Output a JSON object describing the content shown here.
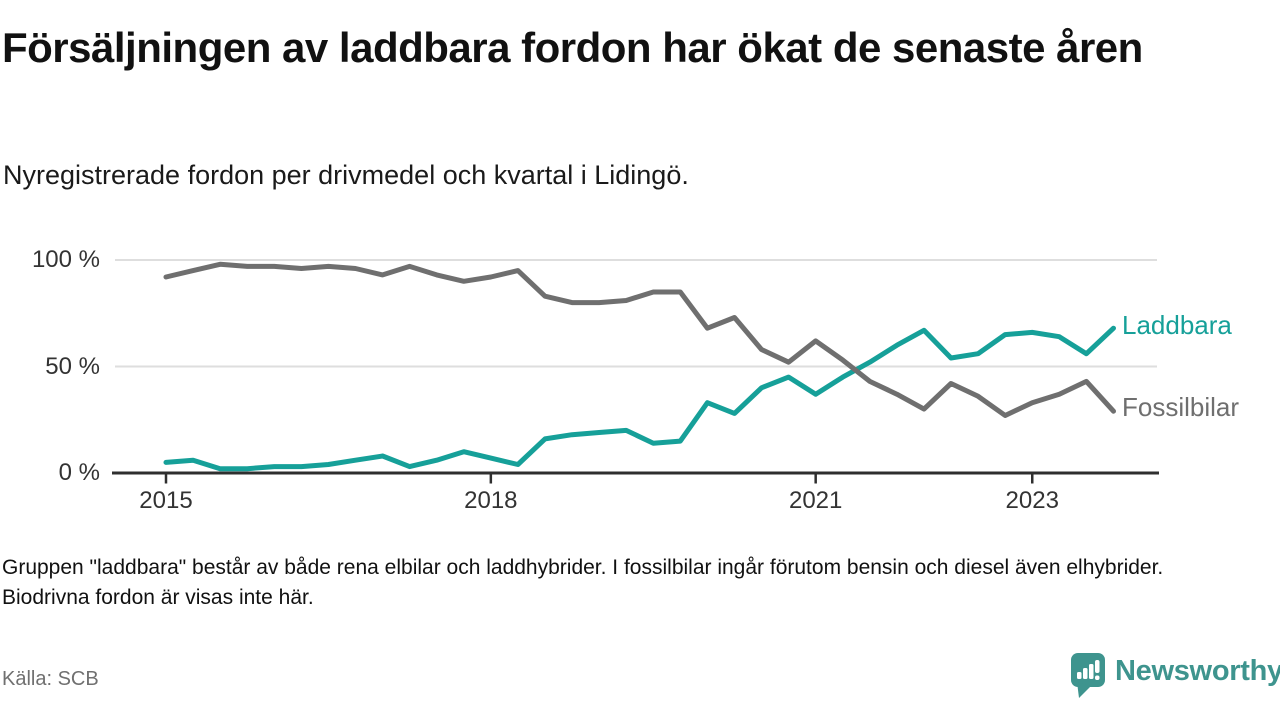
{
  "header": {
    "title": "Försäljningen av laddbara fordon har ökat de senaste åren",
    "subtitle": "Nyregistrerade fordon per drivmedel och kvartal i Lidingö."
  },
  "chart_data": {
    "type": "line",
    "title": "Nyregistrerade fordon per drivmedel och kvartal i Lidingö",
    "x_unit": "quarter",
    "categories": [
      "2015 Q1",
      "2015 Q2",
      "2015 Q3",
      "2015 Q4",
      "2016 Q1",
      "2016 Q2",
      "2016 Q3",
      "2016 Q4",
      "2017 Q1",
      "2017 Q2",
      "2017 Q3",
      "2017 Q4",
      "2018 Q1",
      "2018 Q2",
      "2018 Q3",
      "2018 Q4",
      "2019 Q1",
      "2019 Q2",
      "2019 Q3",
      "2019 Q4",
      "2020 Q1",
      "2020 Q2",
      "2020 Q3",
      "2020 Q4",
      "2021 Q1",
      "2021 Q2",
      "2021 Q3",
      "2021 Q4",
      "2022 Q1",
      "2022 Q2",
      "2022 Q3",
      "2022 Q4",
      "2023 Q1",
      "2023 Q2",
      "2023 Q3",
      "2023 Q4"
    ],
    "series": [
      {
        "name": "Laddbara",
        "color": "#16a099",
        "values": [
          5,
          6,
          2,
          2,
          3,
          3,
          4,
          6,
          8,
          3,
          6,
          10,
          7,
          4,
          16,
          18,
          19,
          20,
          14,
          15,
          33,
          28,
          40,
          45,
          37,
          45,
          52,
          60,
          67,
          54,
          56,
          65,
          66,
          64,
          56,
          68
        ]
      },
      {
        "name": "Fossilbilar",
        "color": "#6f6f6f",
        "values": [
          92,
          95,
          98,
          97,
          97,
          96,
          97,
          96,
          93,
          97,
          93,
          90,
          92,
          95,
          83,
          80,
          80,
          81,
          85,
          85,
          68,
          73,
          58,
          52,
          62,
          53,
          43,
          37,
          30,
          42,
          36,
          27,
          33,
          37,
          43,
          29
        ]
      }
    ],
    "unit": "%",
    "ylim": [
      0,
      100
    ],
    "grid": true,
    "legend_position": "end-of-line",
    "yticks": [
      {
        "label": "100 %",
        "value": 100
      },
      {
        "label": "50 %",
        "value": 50
      },
      {
        "label": "0 %",
        "value": 0
      }
    ],
    "xticks": [
      {
        "label": "2015",
        "index": 0
      },
      {
        "label": "2018",
        "index": 12
      },
      {
        "label": "2021",
        "index": 24
      },
      {
        "label": "2023",
        "index": 32
      }
    ]
  },
  "footnote": "Gruppen \"laddbara\" består av både rena elbilar och laddhybrider. I fossilbilar ingår förutom bensin och diesel även elhybrider. Biodrivna fordon är visas inte här.",
  "source": "Källa: SCB",
  "branding": {
    "logo_text": "Newsworthy",
    "logo_color": "#3e948e"
  }
}
